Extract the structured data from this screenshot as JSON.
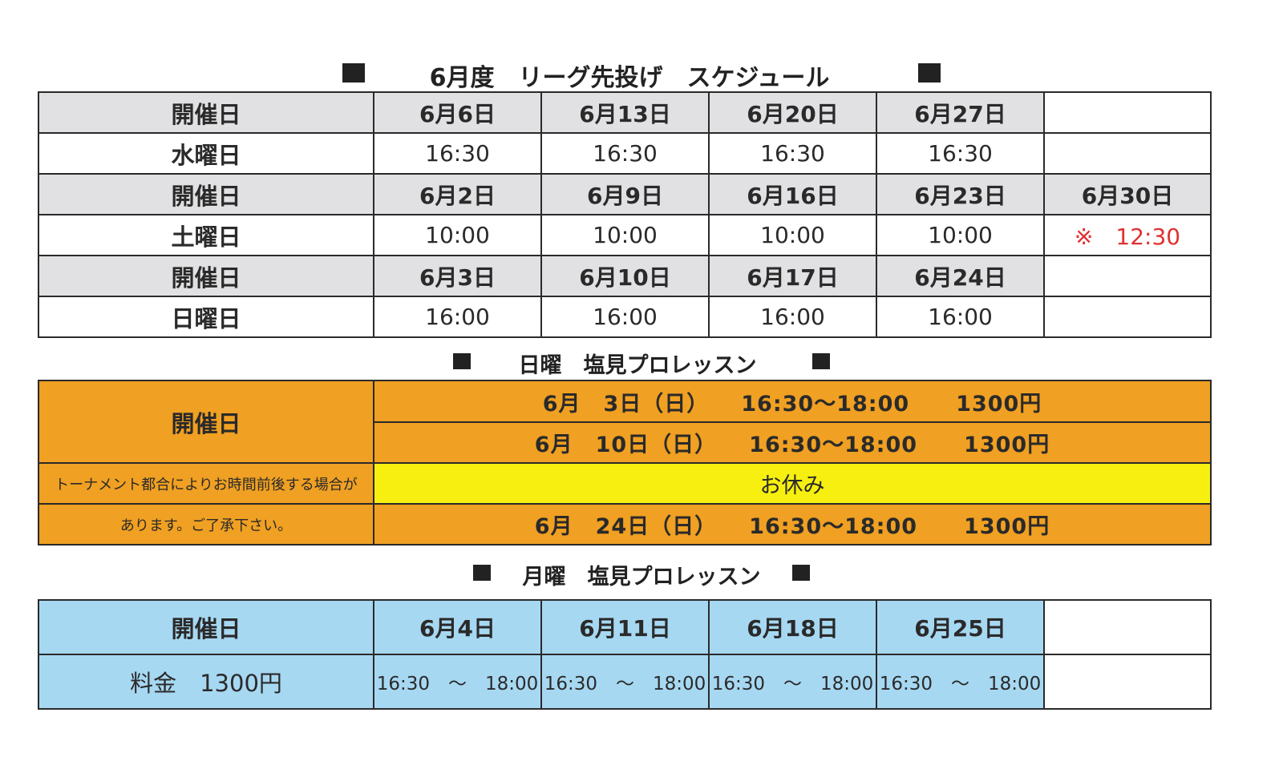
{
  "league": {
    "title": "6月度　リーグ先投げ　スケジュール",
    "rows": [
      {
        "label": "開催日",
        "cells": [
          "6月6日",
          "6月13日",
          "6月20日",
          "6月27日",
          ""
        ]
      },
      {
        "label": "水曜日",
        "cells": [
          "16:30",
          "16:30",
          "16:30",
          "16:30",
          ""
        ]
      },
      {
        "label": "開催日",
        "cells": [
          "6月2日",
          "6月9日",
          "6月16日",
          "6月23日",
          "6月30日"
        ]
      },
      {
        "label": "土曜日",
        "cells": [
          "10:00",
          "10:00",
          "10:00",
          "10:00",
          "※　12:30"
        ]
      },
      {
        "label": "開催日",
        "cells": [
          "6月3日",
          "6月10日",
          "6月17日",
          "6月24日",
          ""
        ]
      },
      {
        "label": "日曜日",
        "cells": [
          "16:00",
          "16:00",
          "16:00",
          "16:00",
          ""
        ]
      }
    ]
  },
  "sunday_lesson": {
    "title": "日曜　塩見プロレッスン",
    "label": "開催日",
    "note_line1": "トーナメント都合によりお時間前後する場合が",
    "note_line2": "あります。ご了承下さい。",
    "sessions": [
      {
        "date": "6月　3日（日）",
        "time": "16:30〜18:00",
        "price": "1300円"
      },
      {
        "date": "6月　10日（日）",
        "time": "16:30〜18:00",
        "price": "1300円"
      },
      {
        "closed": "お休み"
      },
      {
        "date": "6月　24日（日）",
        "time": "16:30〜18:00",
        "price": "1300円"
      }
    ]
  },
  "monday_lesson": {
    "title": "月曜　塩見プロレッスン",
    "label": "開催日",
    "fee_label": "料金　1300円",
    "dates": [
      "6月4日",
      "6月11日",
      "6月18日",
      "6月25日",
      ""
    ],
    "times": [
      "16:30　〜　18:00",
      "16:30　〜　18:00",
      "16:30　〜　18:00",
      "16:30　〜　18:00",
      ""
    ]
  },
  "colors": {
    "header_gray": "#e1e1e3",
    "sunday_orange": "#f0a022",
    "closed_yellow": "#f7ef10",
    "monday_blue": "#a7d8f2",
    "note_red": "#e03030"
  }
}
